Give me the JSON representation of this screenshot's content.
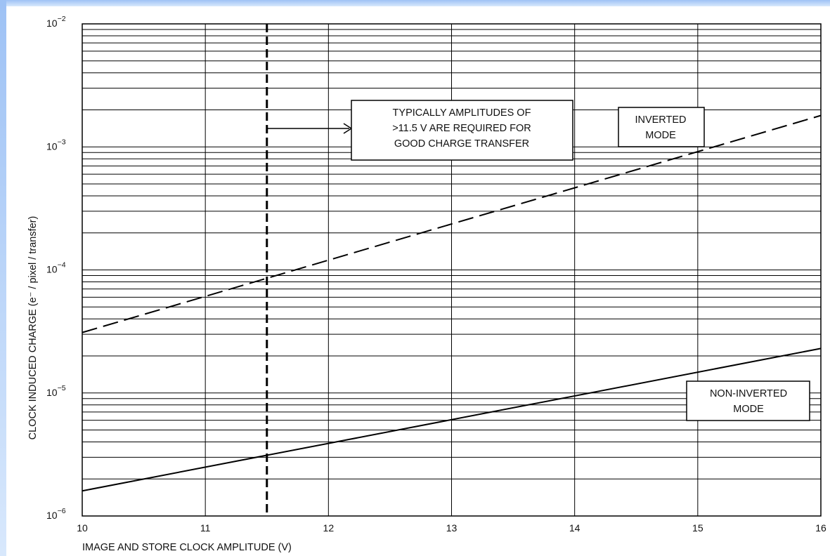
{
  "chart_data": {
    "type": "line",
    "title": "",
    "xlabel": "IMAGE AND STORE CLOCK AMPLITUDE (V)",
    "ylabel": "CLOCK INDUCED CHARGE (e⁻ / pixel / transfer)",
    "xlim": [
      10,
      16
    ],
    "ylim": [
      1e-06,
      0.01
    ],
    "yscale": "log",
    "grid": true,
    "x_ticks": [
      "10",
      "11",
      "12",
      "13",
      "14",
      "15",
      "16"
    ],
    "y_ticks": [
      {
        "base": "10",
        "exp": "−6"
      },
      {
        "base": "10",
        "exp": "−5"
      },
      {
        "base": "10",
        "exp": "−4"
      },
      {
        "base": "10",
        "exp": "−3"
      },
      {
        "base": "10",
        "exp": "−2"
      }
    ],
    "series": [
      {
        "name": "INVERTED MODE",
        "style": "dashed",
        "x": [
          10,
          16
        ],
        "y": [
          3.1e-05,
          0.0018
        ]
      },
      {
        "name": "NON-INVERTED MODE",
        "style": "solid",
        "x": [
          10,
          16
        ],
        "y": [
          1.6e-06,
          2.3e-05
        ]
      }
    ],
    "reference_line": {
      "x": 11.5,
      "style": "dashed"
    },
    "annotation": {
      "lines": [
        "TYPICALLY AMPLITUDES OF",
        ">11.5 V ARE REQUIRED FOR",
        "GOOD CHARGE TRANSFER"
      ]
    },
    "series_labels": [
      {
        "lines": [
          "INVERTED",
          "MODE"
        ]
      },
      {
        "lines": [
          "NON-INVERTED",
          "MODE"
        ]
      }
    ]
  },
  "colors": {
    "frame_top": "#9ec2f5",
    "frame_bottom": "#d8e8fc",
    "ink": "#000000"
  }
}
